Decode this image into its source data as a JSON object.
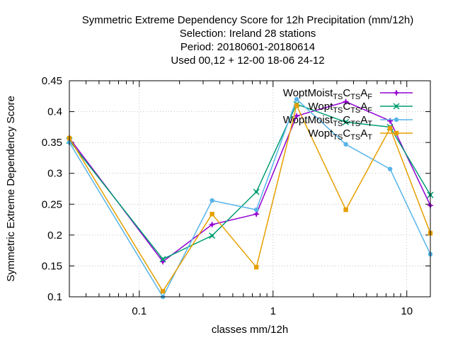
{
  "chart_data": {
    "type": "line",
    "title_lines": [
      "Symmetric Extreme Dependency Score  for 12h Precipitation (mm/12h)",
      "Selection: Ireland     28 stations",
      "Period: 20180601-20180614",
      "Used  00,12  + 12-00 18-06 24-12"
    ],
    "xlabel": "classes mm/12h",
    "ylabel": "Symmetric Extreme Dependency Score",
    "x_scale": "log",
    "xlim": [
      0.03,
      15
    ],
    "ylim": [
      0.1,
      0.45
    ],
    "x_ticks": [
      {
        "value": 0.1,
        "label": "0.1"
      },
      {
        "value": 1,
        "label": "1"
      },
      {
        "value": 10,
        "label": "10"
      }
    ],
    "y_ticks": [
      {
        "value": 0.1,
        "label": "0.1"
      },
      {
        "value": 0.15,
        "label": "0.15"
      },
      {
        "value": 0.2,
        "label": "0.2"
      },
      {
        "value": 0.25,
        "label": "0.25"
      },
      {
        "value": 0.3,
        "label": "0.3"
      },
      {
        "value": 0.35,
        "label": "0.35"
      },
      {
        "value": 0.4,
        "label": "0.4"
      },
      {
        "value": 0.45,
        "label": "0.45"
      }
    ],
    "grid": true,
    "legend_position": "top-right",
    "x": [
      0.03,
      0.15,
      0.35,
      0.75,
      1.5,
      3.5,
      7.5,
      15
    ],
    "series": [
      {
        "name_parts": [
          "WoptMoist",
          "TS",
          "C",
          "TS",
          "A",
          "F"
        ],
        "color": "#9400d3",
        "marker": "plus",
        "values": [
          0.357,
          0.157,
          0.217,
          0.234,
          0.393,
          0.416,
          0.385,
          0.248
        ]
      },
      {
        "name_parts": [
          "Wopt",
          "TS",
          "C",
          "TS",
          "A",
          "F"
        ],
        "color": "#009e73",
        "marker": "cross",
        "values": [
          0.353,
          0.161,
          0.199,
          0.27,
          0.412,
          0.383,
          0.375,
          0.265
        ]
      },
      {
        "name_parts": [
          "WoptMoist",
          "TS",
          "C",
          "TS",
          "A",
          "T"
        ],
        "color": "#56b4e9",
        "marker": "star",
        "values": [
          0.35,
          0.1,
          0.256,
          0.241,
          0.42,
          0.347,
          0.307,
          0.169
        ]
      },
      {
        "name_parts": [
          "Wopt",
          "TS",
          "C",
          "TS",
          "A",
          "T"
        ],
        "color": "#e69f00",
        "marker": "box",
        "values": [
          0.357,
          0.109,
          0.234,
          0.148,
          0.41,
          0.241,
          0.373,
          0.203
        ]
      }
    ]
  }
}
